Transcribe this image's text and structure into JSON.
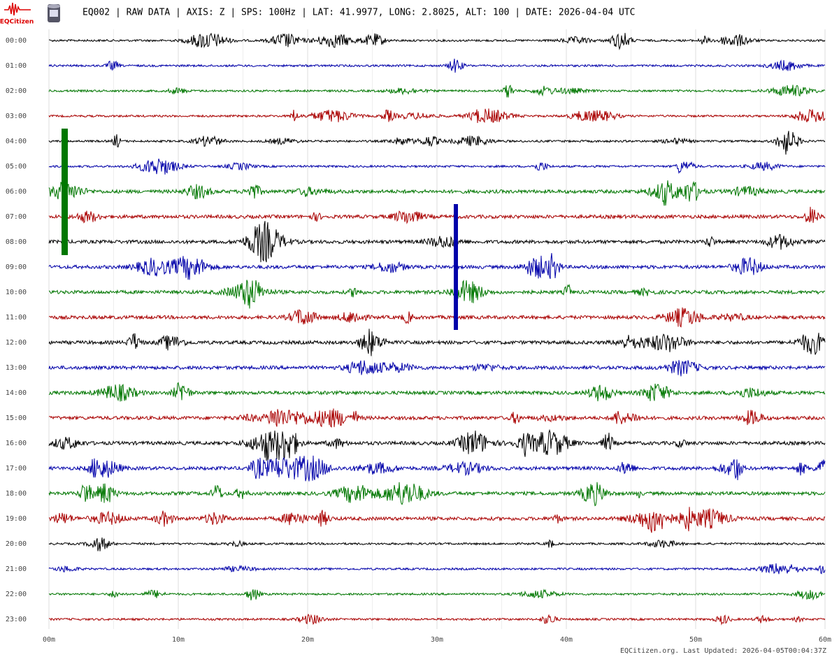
{
  "header": {
    "logo_text": "EQCitizen",
    "title": "EQ002 | RAW DATA | AXIS: Z | SPS: 100Hz | LAT: 41.9977, LONG: 2.8025, ALT: 100 | DATE: 2026-04-04 UTC"
  },
  "chart_data": {
    "type": "helicorder",
    "categories": [
      "00:00",
      "01:00",
      "02:00",
      "03:00",
      "04:00",
      "05:00",
      "06:00",
      "07:00",
      "08:00",
      "09:00",
      "10:00",
      "11:00",
      "12:00",
      "13:00",
      "14:00",
      "15:00",
      "16:00",
      "17:00",
      "18:00",
      "19:00",
      "20:00",
      "21:00",
      "22:00",
      "23:00"
    ],
    "row_colors": [
      "#000000",
      "#0000aa",
      "#007700",
      "#aa0000"
    ],
    "xlim": [
      0,
      60
    ],
    "xticks": [
      {
        "value": 0,
        "label": "00m"
      },
      {
        "value": 10,
        "label": "10m"
      },
      {
        "value": 20,
        "label": "20m"
      },
      {
        "value": 30,
        "label": "30m"
      },
      {
        "value": 40,
        "label": "40m"
      },
      {
        "value": 50,
        "label": "50m"
      },
      {
        "value": 60,
        "label": "60m"
      }
    ],
    "grid": true
  },
  "footer": "EQCitizen.org. Last Updated: 2026-04-05T00:04:37Z"
}
